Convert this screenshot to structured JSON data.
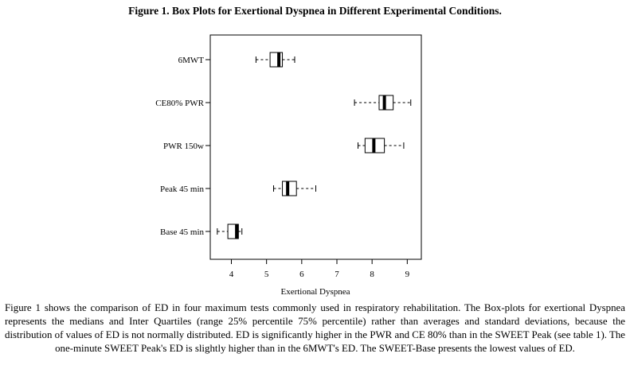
{
  "figure": {
    "title": "Figure 1. Box Plots for Exertional Dyspnea in Different Experimental Conditions.",
    "caption": "Figure 1 shows the comparison of ED in four maximum tests commonly used in respiratory rehabilitation. The Box-plots for exertional Dyspnea represents the medians and Inter Quartiles (range 25% percentile 75% percentile) rather than averages and standard deviations, because the distribution of values of ED is not normally distributed. ED is significantly higher in the PWR and CE 80% than in the SWEET Peak (see table 1). The one-minute SWEET Peak's ED is slightly higher than in the 6MWT's ED. The SWEET-Base presents the lowest values of ED."
  },
  "chart_data": {
    "type": "boxplot",
    "orientation": "horizontal",
    "xlabel": "Exertional Dyspnea",
    "ylabel": "",
    "xlim": [
      3.4,
      9.4
    ],
    "xticks": [
      4,
      5,
      6,
      7,
      8,
      9
    ],
    "grid": false,
    "categories": [
      "6MWT",
      "CE80% PWR",
      "PWR 150w",
      "Peak 45 min",
      "Base 45 min"
    ],
    "boxes": [
      {
        "label": "6MWT",
        "min": 4.7,
        "q1": 5.1,
        "median": 5.35,
        "q3": 5.45,
        "max": 5.8
      },
      {
        "label": "CE80% PWR",
        "min": 7.5,
        "q1": 8.2,
        "median": 8.35,
        "q3": 8.6,
        "max": 9.1
      },
      {
        "label": "PWR 150w",
        "min": 7.6,
        "q1": 7.8,
        "median": 8.05,
        "q3": 8.35,
        "max": 8.9
      },
      {
        "label": "Peak 45 min",
        "min": 5.2,
        "q1": 5.45,
        "median": 5.6,
        "q3": 5.85,
        "max": 6.4
      },
      {
        "label": "Base 45 min",
        "min": 3.6,
        "q1": 3.9,
        "median": 4.15,
        "q3": 4.2,
        "max": 4.3
      }
    ]
  }
}
